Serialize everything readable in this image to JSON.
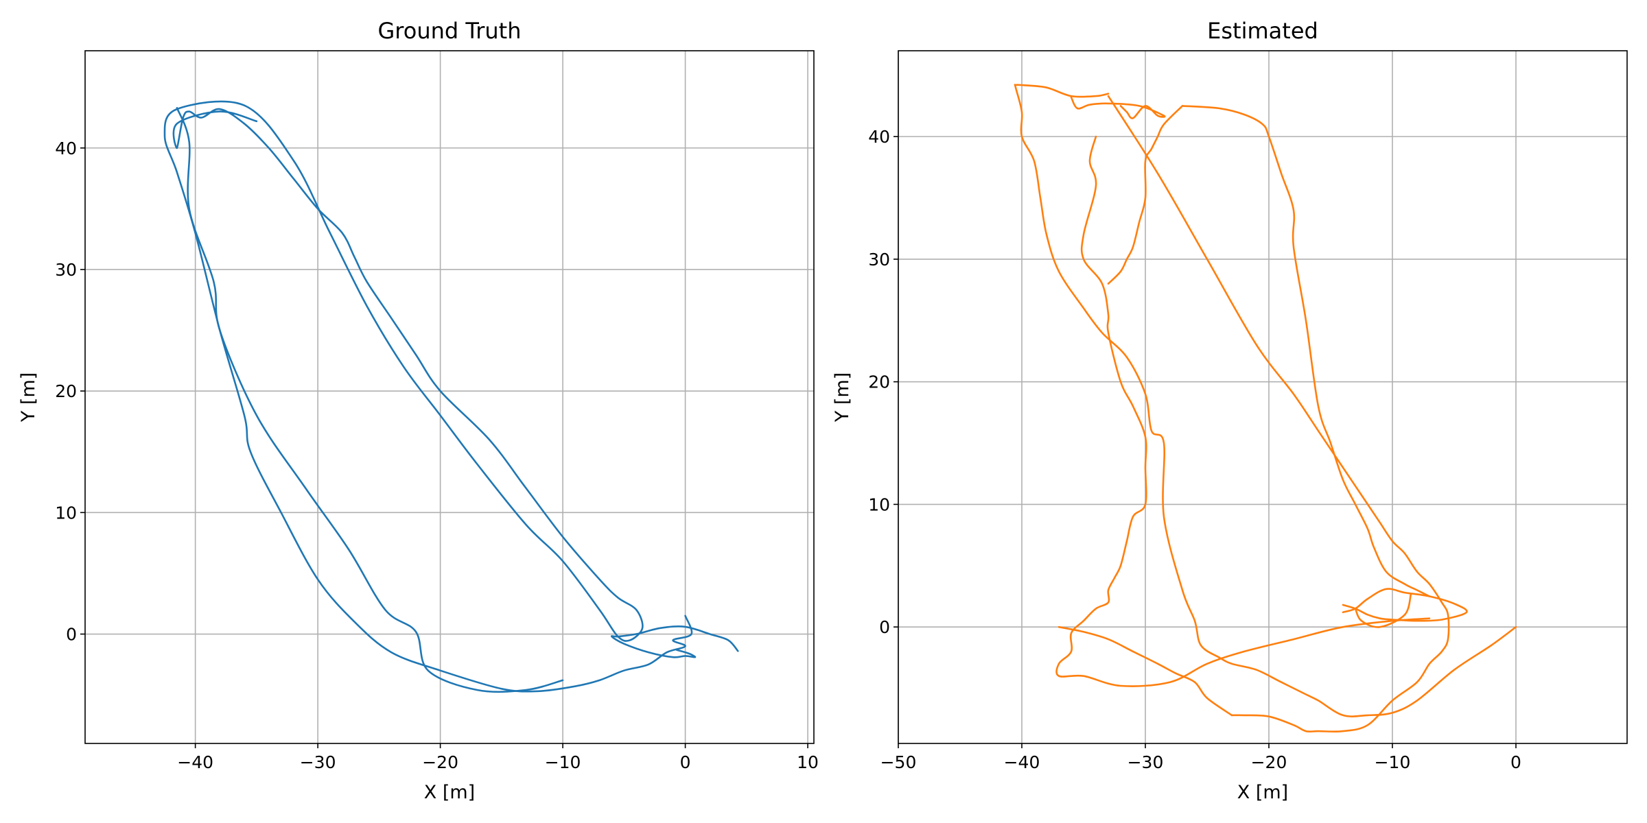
{
  "chart_data": [
    {
      "type": "line",
      "title": "Ground Truth",
      "xlabel": "X [m]",
      "ylabel": "Y [m]",
      "xlim": [
        -49,
        10.5
      ],
      "ylim": [
        -9,
        48
      ],
      "xticks": [
        -40,
        -30,
        -20,
        -10,
        0,
        10
      ],
      "yticks": [
        0,
        10,
        20,
        30,
        40
      ],
      "xtick_labels": [
        "−40",
        "−30",
        "−20",
        "−10",
        "0",
        "10"
      ],
      "ytick_labels": [
        "0",
        "10",
        "20",
        "30",
        "40"
      ],
      "grid": true,
      "color": "#1f77b4",
      "series": [
        {
          "x": [
            0,
            0.5,
            -1,
            0,
            -1.5,
            -3,
            -5,
            -7,
            -9,
            -12,
            -15,
            -20,
            -24,
            -27,
            -30,
            -33,
            -35.5,
            -36,
            -38,
            -40,
            -41.5,
            -42.5,
            -41.5,
            -36,
            -32,
            -29,
            -26,
            -23,
            -20,
            -17,
            -13,
            -10,
            -7,
            -5.5,
            -4.5,
            -3.5,
            -4,
            -5.5,
            -7,
            -10,
            -13,
            -16,
            -20,
            -22,
            -24,
            -26,
            -27,
            -28,
            -30,
            -32,
            -34,
            -36,
            -38,
            -39.5,
            -40.5,
            -41,
            -41.5,
            -41.5,
            -38,
            -35
          ],
          "y": [
            1.5,
            0,
            -0.5,
            -1,
            -1.5,
            -2.5,
            -3,
            -3.8,
            -4.3,
            -4.7,
            -4.5,
            -3,
            -1.5,
            1,
            4.5,
            10,
            15,
            18,
            25,
            33,
            38,
            41,
            43.2,
            43.5,
            39,
            33,
            27,
            22,
            18,
            14,
            9,
            6,
            2,
            -0.2,
            -0.5,
            0.5,
            2,
            3,
            4.5,
            8,
            12,
            16,
            20,
            23,
            26,
            29,
            31,
            33,
            35,
            37.5,
            40,
            42,
            43.2,
            42.5,
            43,
            42.5,
            40,
            42,
            43,
            42.2
          ]
        },
        {
          "x": [
            4.3,
            3.5,
            2,
            0,
            -2,
            -4,
            -5.5,
            -6,
            -5,
            -3,
            -1,
            0,
            0.8,
            0.3,
            -0.7
          ],
          "y": [
            -1.4,
            -0.5,
            0,
            0.6,
            0.5,
            0,
            -0.2,
            -0.2,
            -0.8,
            -1.5,
            -1.9,
            -1.8,
            -1.9,
            -1.6,
            -1.3
          ]
        },
        {
          "x": [
            -41.5,
            -40.5,
            -40.5,
            -38.5,
            -38,
            -35,
            -31,
            -27.5,
            -24.5,
            -22,
            -21,
            -17,
            -13,
            -10
          ],
          "y": [
            43.3,
            40.5,
            35,
            29,
            25,
            18,
            12,
            7,
            2,
            0.2,
            -3,
            -4.6,
            -4.6,
            -3.8
          ]
        }
      ]
    },
    {
      "type": "line",
      "title": "Estimated",
      "xlabel": "X [m]",
      "ylabel": "Y [m]",
      "xlim": [
        -50,
        9
      ],
      "ylim": [
        -9.5,
        47
      ],
      "xticks": [
        -50,
        -40,
        -30,
        -20,
        -10,
        0
      ],
      "yticks": [
        0,
        10,
        20,
        30,
        40
      ],
      "xtick_labels": [
        "−50",
        "−40",
        "−30",
        "−20",
        "−10",
        "0"
      ],
      "ytick_labels": [
        "0",
        "10",
        "20",
        "30",
        "40"
      ],
      "grid": true,
      "color": "#ff7f0e",
      "series": [
        {
          "x": [
            0,
            -2,
            -5,
            -8,
            -10,
            -12,
            -14,
            -16,
            -17,
            -19,
            -21,
            -23,
            -24,
            -25.5,
            -26,
            -27,
            -28.5,
            -28.5,
            -29.5,
            -30,
            -31.5,
            -33.5,
            -35,
            -37,
            -38,
            -38.5,
            -39,
            -40,
            -40,
            -40.5,
            -40.5,
            -40,
            -38,
            -36,
            -34,
            -33
          ],
          "y": [
            0,
            -1.5,
            -3.5,
            -6,
            -7,
            -7.2,
            -7.2,
            -6,
            -5.5,
            -4.5,
            -3.5,
            -3,
            -2.5,
            -1.5,
            0.5,
            3,
            9,
            15,
            16,
            19,
            22,
            24,
            26,
            29,
            32,
            35,
            38,
            40,
            42,
            44,
            44.2,
            44.2,
            44,
            43.3,
            43.3,
            43.5
          ]
        },
        {
          "x": [
            -34,
            -34.5,
            -34,
            -35,
            -35,
            -33.5,
            -33,
            -33,
            -32,
            -31,
            -30,
            -30,
            -30,
            -31,
            -31.5,
            -32,
            -32.5,
            -33,
            -33,
            -34,
            -35,
            -36,
            -36,
            -37,
            -37,
            -35,
            -32,
            -28,
            -25,
            -22,
            -18,
            -14,
            -10,
            -7
          ],
          "y": [
            40,
            38,
            36,
            32,
            30,
            28,
            25.5,
            24,
            20,
            18,
            15.5,
            13,
            10,
            9,
            7,
            5,
            4,
            3,
            2,
            1.5,
            0.5,
            -0.5,
            -2,
            -3,
            -4,
            -4,
            -4.8,
            -4.5,
            -3,
            -2,
            -1,
            0,
            0.5,
            0.7
          ]
        },
        {
          "x": [
            -33,
            -29,
            -25,
            -21,
            -18,
            -16,
            -14,
            -12,
            -11,
            -10,
            -9,
            -8,
            -7,
            -6,
            -5.5,
            -5.5,
            -6,
            -7,
            -8,
            -10,
            -12,
            -14,
            -16,
            -17,
            -18,
            -20,
            -22,
            -23
          ],
          "y": [
            43.3,
            37,
            30,
            23,
            19,
            16,
            13,
            10,
            8.5,
            7,
            6,
            4.5,
            3.5,
            2,
            1,
            -1,
            -2,
            -3,
            -4.5,
            -6,
            -8,
            -8.5,
            -8.5,
            -8.5,
            -8,
            -7.3,
            -7.2,
            -7.2
          ]
        },
        {
          "x": [
            -23,
            -25,
            -26,
            -27.5,
            -29,
            -31,
            -33,
            -35,
            -37
          ],
          "y": [
            -7.2,
            -5.8,
            -4.5,
            -3.8,
            -3,
            -2,
            -1,
            -0.4,
            0
          ]
        },
        {
          "x": [
            -14,
            -13,
            -12,
            -11,
            -10,
            -8,
            -6,
            -4,
            -5,
            -7,
            -9,
            -10.5,
            -12,
            -13,
            -14
          ],
          "y": [
            1.8,
            1.5,
            1,
            0.7,
            0.6,
            0.5,
            0.6,
            1.2,
            1.9,
            2.5,
            2.8,
            3.1,
            2.3,
            1.5,
            1.2
          ]
        },
        {
          "x": [
            -8.5,
            -9,
            -11,
            -12.5,
            -13
          ],
          "y": [
            2.7,
            1,
            0,
            0.5,
            1.5
          ]
        },
        {
          "x": [
            -27,
            -24,
            -22,
            -20.5,
            -20,
            -19,
            -18,
            -18,
            -17,
            -16,
            -15,
            -14,
            -13,
            -12,
            -11.5,
            -10.5,
            -9,
            -8,
            -7
          ],
          "y": [
            42.5,
            42.3,
            41.8,
            41,
            40,
            37,
            34,
            31,
            25,
            18,
            15,
            12,
            10,
            8,
            6.5,
            4.5,
            3.5,
            3,
            2.5
          ]
        },
        {
          "x": [
            -27,
            -28.5,
            -29,
            -29.5,
            -30,
            -30,
            -30.5,
            -31,
            -31.5,
            -32,
            -33
          ],
          "y": [
            42.5,
            41,
            40,
            39,
            38,
            35,
            33,
            31,
            30,
            29,
            28
          ]
        },
        {
          "x": [
            -32,
            -31.5,
            -31,
            -30,
            -29,
            -28.5,
            -30.5,
            -33,
            -34.5,
            -35.5,
            -36
          ],
          "y": [
            42.5,
            42,
            41.5,
            42.5,
            41.7,
            41.7,
            42.5,
            42.7,
            42.6,
            42.3,
            43.2
          ]
        }
      ]
    }
  ]
}
